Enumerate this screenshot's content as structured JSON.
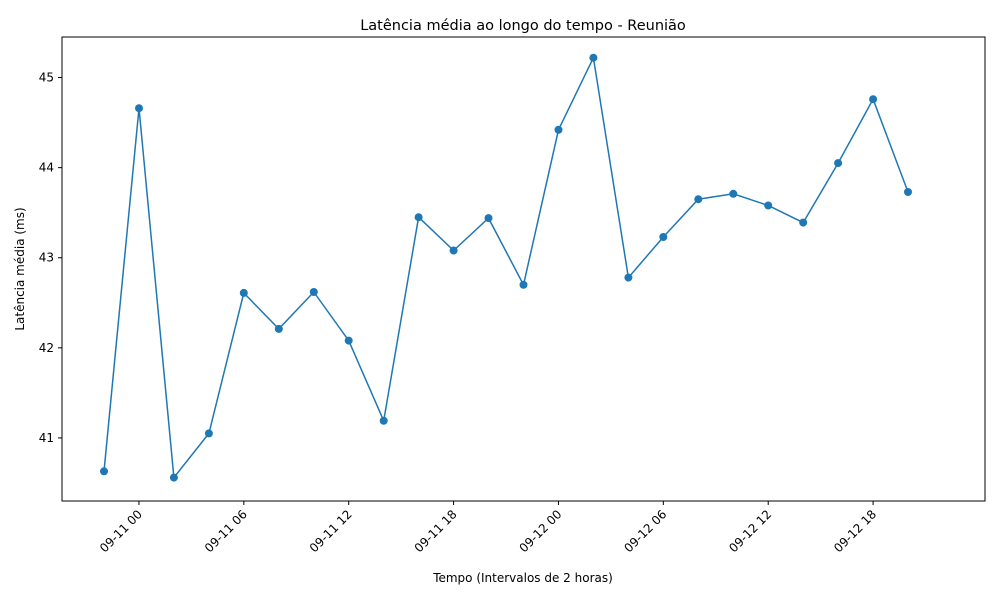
{
  "chart_data": {
    "type": "line",
    "title": "Latência média ao longo do tempo - Reunião",
    "xlabel": "Tempo (Intervalos de 2 horas)",
    "ylabel": "Latência média (ms)",
    "x_ticks": [
      "09-11 00",
      "09-11 06",
      "09-11 12",
      "09-11 18",
      "09-12 00",
      "09-12 06",
      "09-12 12",
      "09-12 18"
    ],
    "y_ticks": [
      "41",
      "42",
      "43",
      "44",
      "45"
    ],
    "ylim": [
      40.3,
      45.45
    ],
    "grid": false,
    "legend": "none",
    "series": [
      {
        "color": "#1f77b4",
        "marker": "circle",
        "x": [
          "09-10 22:00",
          "09-11 00:00",
          "09-11 02:00",
          "09-11 04:00",
          "09-11 06:00",
          "09-11 08:00",
          "09-11 10:00",
          "09-11 12:00",
          "09-11 14:00",
          "09-11 16:00",
          "09-11 18:00",
          "09-11 20:00",
          "09-11 22:00",
          "09-12 00:00",
          "09-12 02:00",
          "09-12 04:00",
          "09-12 06:00",
          "09-12 08:00",
          "09-12 10:00",
          "09-12 12:00",
          "09-12 14:00",
          "09-12 16:00",
          "09-12 18:00",
          "09-12 20:00"
        ],
        "values": [
          40.63,
          44.66,
          40.56,
          41.05,
          42.61,
          42.21,
          42.62,
          42.08,
          41.19,
          43.45,
          43.08,
          43.44,
          42.7,
          44.42,
          45.22,
          42.78,
          43.23,
          43.65,
          43.71,
          43.58,
          43.39,
          44.05,
          44.76,
          43.73
        ]
      }
    ]
  }
}
